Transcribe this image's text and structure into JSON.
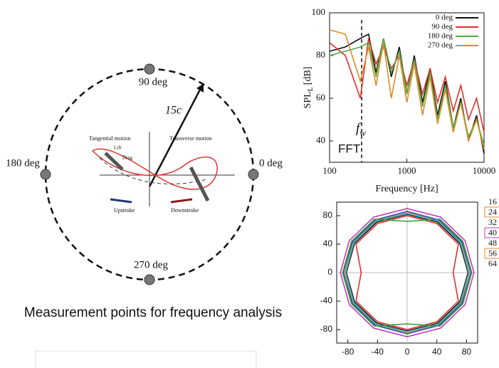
{
  "diagram": {
    "points": [
      "90 deg",
      "0 deg",
      "180 deg",
      "270 deg"
    ],
    "arrow_label": "15c",
    "tangential": "Tangential motion",
    "transverse": "Transverse motion",
    "lift": "Lift",
    "drag": "Drag",
    "upstroke": "Upstroke",
    "downstroke": "Downstroke",
    "caption": "Measurement points for frequency analysis"
  },
  "chart_data": [
    {
      "type": "line",
      "x_label": "Frequency [Hz]",
      "y_label": "SPL",
      "y_label_sub": "L",
      "y_label_unit": "[dB]",
      "annotation": "FFT",
      "marker_label": "f",
      "marker_label_sub": "w",
      "marker_x": 260,
      "xscale": "log",
      "xlim": [
        100,
        10000
      ],
      "xticks": [
        100,
        1000,
        10000
      ],
      "ylim": [
        30,
        100
      ],
      "yticks": [
        40,
        60,
        80,
        100
      ],
      "x": [
        100,
        160,
        250,
        320,
        400,
        500,
        630,
        800,
        1000,
        1250,
        1600,
        2000,
        2500,
        3150,
        4000,
        5000,
        6300,
        8000,
        10000
      ],
      "series": [
        {
          "name": "0 deg",
          "color": "#111111",
          "values": [
            82,
            84,
            88,
            90,
            72,
            88,
            70,
            84,
            62,
            80,
            58,
            74,
            52,
            68,
            46,
            60,
            40,
            52,
            34
          ]
        },
        {
          "name": "90 deg",
          "color": "#e0302a",
          "values": [
            86,
            80,
            60,
            88,
            76,
            84,
            74,
            80,
            66,
            78,
            62,
            74,
            58,
            70,
            54,
            66,
            50,
            60,
            44
          ]
        },
        {
          "name": "180 deg",
          "color": "#4caf3c",
          "values": [
            80,
            82,
            84,
            86,
            70,
            88,
            72,
            82,
            62,
            78,
            56,
            72,
            50,
            66,
            46,
            58,
            42,
            50,
            38
          ]
        },
        {
          "name": "270 deg",
          "color": "#e08a2c",
          "values": [
            92,
            90,
            68,
            84,
            66,
            86,
            60,
            80,
            58,
            76,
            52,
            70,
            48,
            64,
            44,
            58,
            40,
            50,
            36
          ]
        }
      ]
    },
    {
      "type": "line",
      "xlim": [
        -95,
        95
      ],
      "xticks": [
        -80,
        -40,
        0,
        40,
        80
      ],
      "ylim": [
        -99,
        99
      ],
      "yticks": [
        -80,
        -40,
        0,
        40,
        80
      ],
      "series": [
        {
          "name": "16",
          "color": "#111111",
          "x": [
            82,
            71,
            41,
            0,
            -41,
            -71,
            -82,
            -71,
            -41,
            0,
            41,
            71
          ],
          "values": [
            0,
            41,
            71,
            82,
            71,
            41,
            0,
            -41,
            -71,
            -82,
            -71,
            -41
          ]
        },
        {
          "name": "24",
          "color": "#e08a2c",
          "x": [
            84,
            73,
            42,
            0,
            -42,
            -73,
            -84,
            -73,
            -42,
            0,
            42,
            73
          ],
          "values": [
            0,
            42,
            73,
            84,
            73,
            42,
            0,
            -42,
            -73,
            -84,
            -73,
            -42
          ]
        },
        {
          "name": "32",
          "color": "#e0302a",
          "x": [
            62,
            69,
            40,
            0,
            -40,
            -69,
            -62,
            -69,
            -40,
            0,
            40,
            69
          ],
          "values": [
            0,
            40,
            69,
            80,
            69,
            40,
            0,
            -40,
            -69,
            -80,
            -69,
            -40
          ]
        },
        {
          "name": "40",
          "color": "#c03ab8",
          "x": [
            90,
            78,
            45,
            0,
            -45,
            -78,
            -90,
            -78,
            -45,
            0,
            45,
            78
          ],
          "values": [
            0,
            45,
            78,
            90,
            78,
            45,
            0,
            -45,
            -78,
            -90,
            -78,
            -45
          ]
        },
        {
          "name": "48",
          "color": "#2a4fb8",
          "x": [
            86,
            74,
            43,
            0,
            -43,
            -74,
            -86,
            -74,
            -43,
            0,
            43,
            74
          ],
          "values": [
            0,
            43,
            74,
            86,
            74,
            43,
            0,
            -43,
            -74,
            -86,
            -74,
            -43
          ]
        },
        {
          "name": "56",
          "color": "#3ab8c8",
          "x": [
            83,
            72,
            42,
            0,
            -42,
            -72,
            -83,
            -72,
            -42,
            0,
            42,
            72
          ],
          "values": [
            0,
            42,
            72,
            83,
            72,
            42,
            0,
            -42,
            -72,
            -83,
            -72,
            -42
          ]
        },
        {
          "name": "64",
          "color": "#3a9a3a",
          "x": [
            87,
            75,
            44,
            0,
            -44,
            -75,
            -87,
            -75,
            -44,
            0,
            44,
            75
          ],
          "values": [
            0,
            44,
            75,
            72,
            75,
            44,
            0,
            -44,
            -75,
            -72,
            -75,
            -44
          ]
        }
      ]
    }
  ]
}
